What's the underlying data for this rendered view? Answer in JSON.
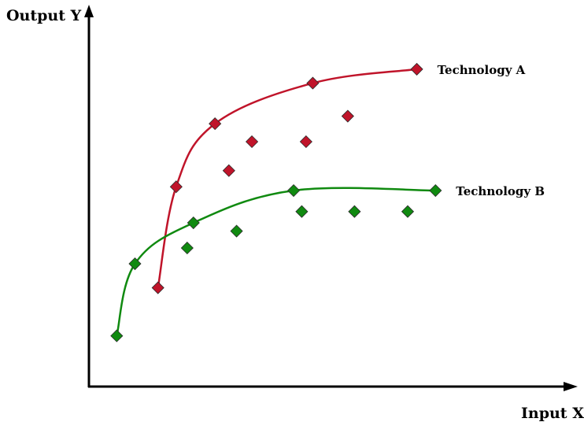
{
  "chart_data": {
    "type": "scatter",
    "title": "",
    "xlabel": "Input X",
    "ylabel": "Output Y",
    "axis_ticks": false,
    "grid": false,
    "x_range": [
      0,
      100
    ],
    "y_range": [
      0,
      100
    ],
    "series": [
      {
        "name": "Technology A",
        "color": "#c0142a",
        "marker": "diamond",
        "frontier": [
          [
            14.4,
            26.3
          ],
          [
            18.2,
            53.2
          ],
          [
            26.3,
            70.0
          ],
          [
            46.7,
            80.8
          ],
          [
            68.4,
            84.5
          ]
        ],
        "interior": [
          [
            29.2,
            57.5
          ],
          [
            34.0,
            65.2
          ],
          [
            45.3,
            65.2
          ],
          [
            54.0,
            72.0
          ]
        ]
      },
      {
        "name": "Technology B",
        "color": "#108a10",
        "marker": "diamond",
        "frontier": [
          [
            5.8,
            13.5
          ],
          [
            9.6,
            32.7
          ],
          [
            21.8,
            43.6
          ],
          [
            42.7,
            52.2
          ],
          [
            72.3,
            52.2
          ]
        ],
        "interior": [
          [
            20.5,
            36.9
          ],
          [
            30.8,
            41.4
          ],
          [
            44.4,
            46.6
          ],
          [
            55.4,
            46.6
          ],
          [
            66.5,
            46.6
          ]
        ]
      }
    ]
  }
}
